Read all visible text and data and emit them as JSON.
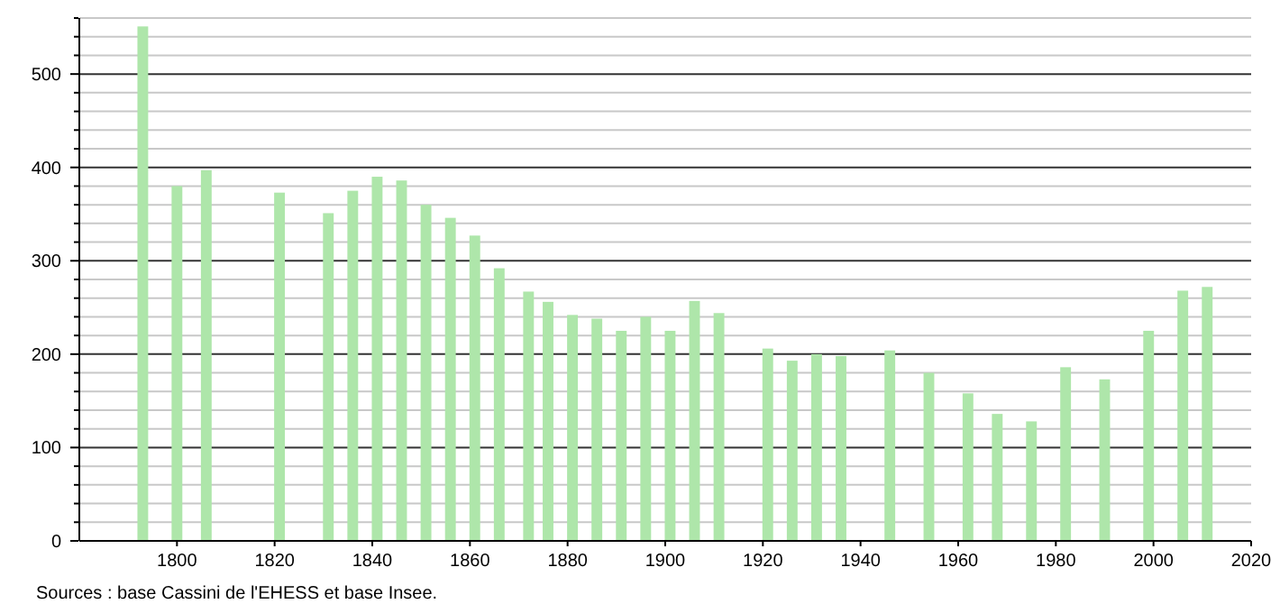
{
  "chart_data": {
    "type": "bar",
    "x": [
      1793,
      1800,
      1806,
      1821,
      1831,
      1836,
      1841,
      1846,
      1851,
      1856,
      1861,
      1866,
      1872,
      1876,
      1881,
      1886,
      1891,
      1896,
      1901,
      1906,
      1911,
      1921,
      1926,
      1931,
      1936,
      1946,
      1954,
      1962,
      1968,
      1975,
      1982,
      1990,
      1999,
      2006,
      2011
    ],
    "values": [
      551,
      380,
      397,
      373,
      351,
      375,
      390,
      386,
      360,
      346,
      327,
      292,
      267,
      256,
      242,
      238,
      225,
      240,
      225,
      257,
      244,
      206,
      193,
      200,
      198,
      204,
      180,
      158,
      136,
      128,
      186,
      173,
      225,
      268,
      272
    ],
    "color": "#aee6aa",
    "xlim": [
      1780,
      2020
    ],
    "xticks": [
      1800,
      1820,
      1840,
      1860,
      1880,
      1900,
      1920,
      1940,
      1960,
      1980,
      2000,
      2020
    ],
    "ylim": [
      0,
      560
    ],
    "yticks": [
      0,
      {
        "value": 20,
        "label": null
      },
      {
        "value": 40,
        "label": null
      },
      {
        "value": 60,
        "label": null
      },
      {
        "value": 80,
        "label": null
      },
      100,
      {
        "value": 120,
        "label": null
      },
      {
        "value": 140,
        "label": null
      },
      {
        "value": 160,
        "label": null
      },
      {
        "value": 180,
        "label": null
      },
      200,
      {
        "value": 220,
        "label": null
      },
      {
        "value": 240,
        "label": null
      },
      {
        "value": 260,
        "label": null
      },
      {
        "value": 280,
        "label": null
      },
      300,
      {
        "value": 320,
        "label": null
      },
      {
        "value": 340,
        "label": null
      },
      {
        "value": 360,
        "label": null
      },
      {
        "value": 380,
        "label": null
      },
      400,
      {
        "value": 420,
        "label": null
      },
      {
        "value": 440,
        "label": null
      },
      {
        "value": 460,
        "label": null
      },
      {
        "value": 480,
        "label": null
      },
      500,
      {
        "value": 520,
        "label": null
      },
      {
        "value": 540,
        "label": null
      },
      {
        "value": 560,
        "label": null
      }
    ],
    "grid": "y",
    "annotations": [
      "Sources : base Cassini de l'EHESS et base Insee."
    ]
  }
}
